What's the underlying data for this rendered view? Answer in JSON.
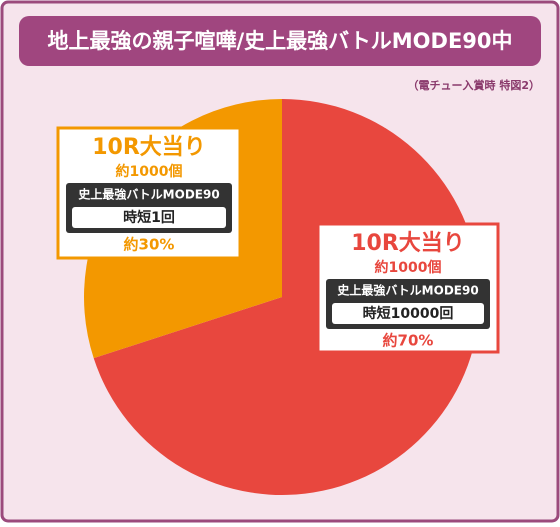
{
  "chart_data": {
    "type": "pie",
    "title": "地上最強の親子喧嘩/史上最強バトルMODE90中",
    "subtitle": "（電チュー入賞時 特図2）",
    "values": [
      70,
      30
    ],
    "value_labels": [
      "約70%",
      "約30%"
    ],
    "colors": [
      "#e8473e",
      "#f39800"
    ],
    "labels": [
      {
        "prize": "10R大当り",
        "payout": "約1000個",
        "mode": "史上最強バトルMODE90",
        "jitan": "時短10000回"
      },
      {
        "prize": "10R大当り",
        "payout": "約1000個",
        "mode": "史上最強バトルMODE90",
        "jitan": "時短1回"
      }
    ]
  }
}
